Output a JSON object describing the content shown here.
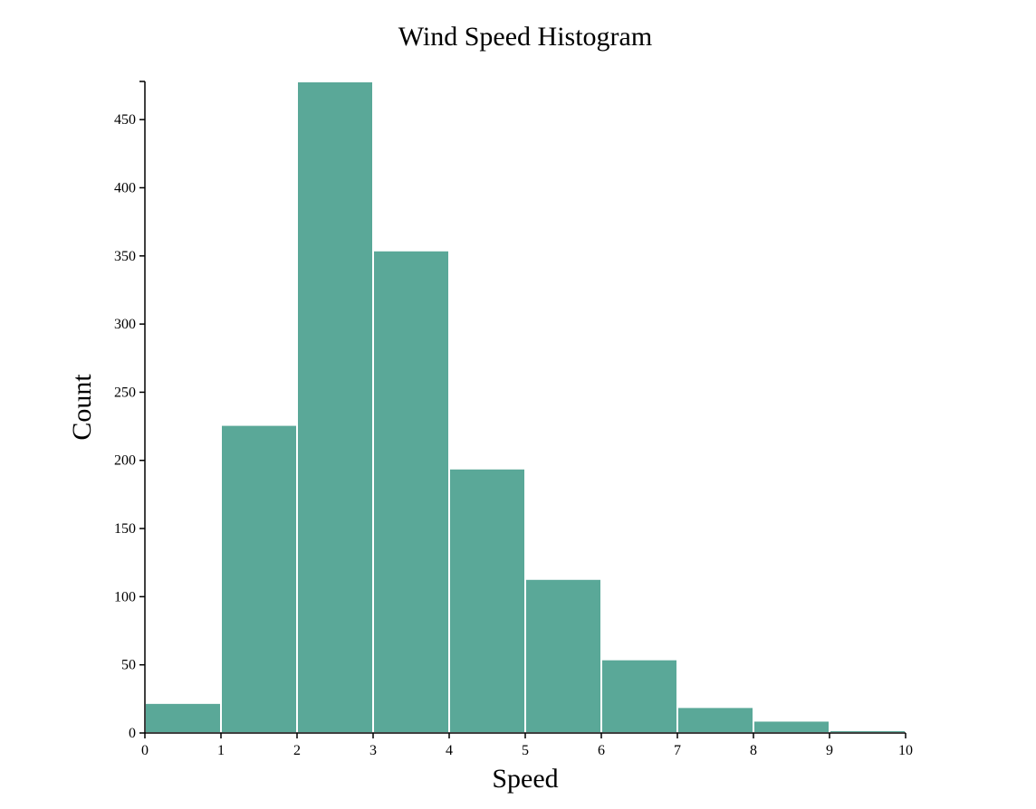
{
  "chart_data": {
    "type": "bar",
    "title": "Wind Speed Histogram",
    "xlabel": "Speed",
    "ylabel": "Count",
    "bins": [
      {
        "x0": 0,
        "x1": 1,
        "count": 22
      },
      {
        "x0": 1,
        "x1": 2,
        "count": 226
      },
      {
        "x0": 2,
        "x1": 3,
        "count": 478
      },
      {
        "x0": 3,
        "x1": 4,
        "count": 354
      },
      {
        "x0": 4,
        "x1": 5,
        "count": 194
      },
      {
        "x0": 5,
        "x1": 6,
        "count": 113
      },
      {
        "x0": 6,
        "x1": 7,
        "count": 54
      },
      {
        "x0": 7,
        "x1": 8,
        "count": 19
      },
      {
        "x0": 8,
        "x1": 9,
        "count": 9
      },
      {
        "x0": 9,
        "x1": 10,
        "count": 2
      }
    ],
    "xlim": [
      0,
      10
    ],
    "ylim": [
      0,
      478
    ],
    "xticks": [
      0,
      1,
      2,
      3,
      4,
      5,
      6,
      7,
      8,
      9,
      10
    ],
    "yticks": [
      0,
      50,
      100,
      150,
      200,
      250,
      300,
      350,
      400,
      450
    ],
    "grid": false,
    "colors": {
      "bar": "#5aa898",
      "bar_edge": "#ffffff",
      "axis": "#000000"
    }
  }
}
